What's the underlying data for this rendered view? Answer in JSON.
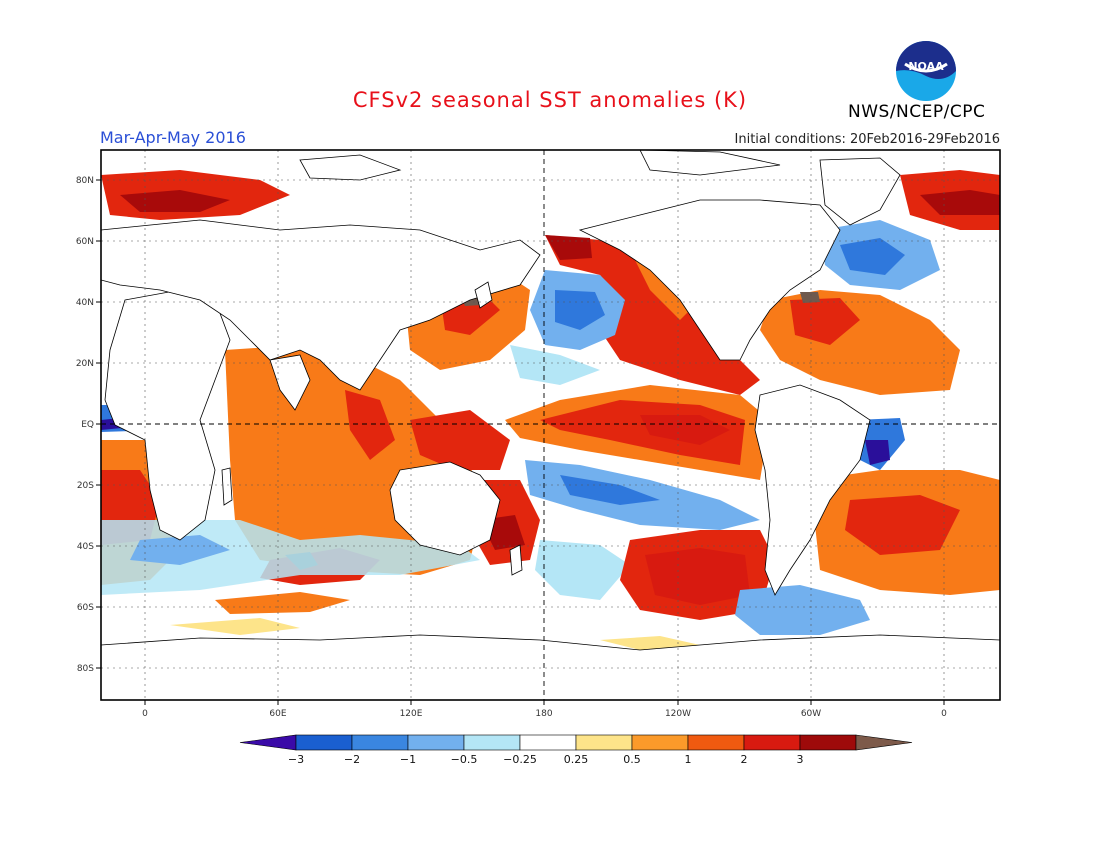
{
  "title": "CFSv2 seasonal SST anomalies (K)",
  "season": "Mar-Apr-May 2016",
  "initial_conditions": "Initial conditions: 20Feb2016-29Feb2016",
  "agency": "NWS/NCEP/CPC",
  "logo_text": "NOAA",
  "lat_labels": [
    "80N",
    "60N",
    "40N",
    "20N",
    "EQ",
    "20S",
    "40S",
    "60S",
    "80S"
  ],
  "lon_labels": [
    "0",
    "60E",
    "120E",
    "180",
    "120W",
    "60W",
    "0"
  ],
  "colorbar": {
    "labels": [
      "-3",
      "-2",
      "-1",
      "-0.5",
      "-0.25",
      "0.25",
      "0.5",
      "1",
      "2",
      "3"
    ],
    "colors": [
      "#3a0aa8",
      "#1a5fd0",
      "#3a86e0",
      "#72b0ee",
      "#b4e6f6",
      "#ffffff",
      "#fde48a",
      "#fb9a2a",
      "#f05a10",
      "#d81a10",
      "#9e0a0a",
      "#7d5a4a"
    ]
  },
  "palette": {
    "land": "#ffffff",
    "weak_warm": "#fde48a",
    "warm1": "#f87a18",
    "warm2": "#e2260e",
    "warm3": "#a80a0a",
    "cool1": "#b4e6f6",
    "cool2": "#72b0ee",
    "cool3": "#2f78dc",
    "cool4": "#2a0f9a",
    "extreme": "#6f5a4e"
  }
}
